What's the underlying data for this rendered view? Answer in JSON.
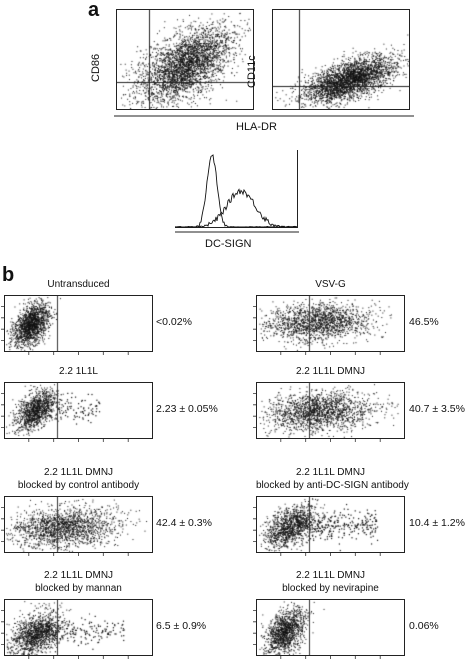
{
  "panel_a": {
    "letter": "a",
    "plot1_ylabel": "CD86",
    "plot2_ylabel": "CD11c",
    "shared_xlabel": "HLA-DR",
    "histogram_xlabel": "DC-SIGN"
  },
  "panel_b": {
    "letter": "b",
    "plots": [
      {
        "title": [
          "Untransduced"
        ],
        "value": "<0.02%"
      },
      {
        "title": [
          "VSV-G"
        ],
        "value": "46.5%"
      },
      {
        "title": [
          "2.2 1L1L"
        ],
        "value": "2.23 ± 0.05%"
      },
      {
        "title": [
          "2.2 1L1L DMNJ"
        ],
        "value": "40.7 ± 3.5%"
      },
      {
        "title": [
          "2.2 1L1L DMNJ",
          "blocked by control antibody"
        ],
        "value": "42.4 ± 0.3%"
      },
      {
        "title": [
          "2.2 1L1L DMNJ",
          "blocked by anti-DC-SIGN antibody"
        ],
        "value": "10.4 ± 1.2%"
      },
      {
        "title": [
          "2.2 1L1L DMNJ",
          "blocked by mannan"
        ],
        "value": "6.5 ± 0.9%"
      },
      {
        "title": [
          "2.2 1L1L DMNJ",
          "blocked by nevirapine"
        ],
        "value": "0.06%"
      }
    ]
  },
  "colors": {
    "ink": "#111111",
    "background": "#ffffff"
  }
}
